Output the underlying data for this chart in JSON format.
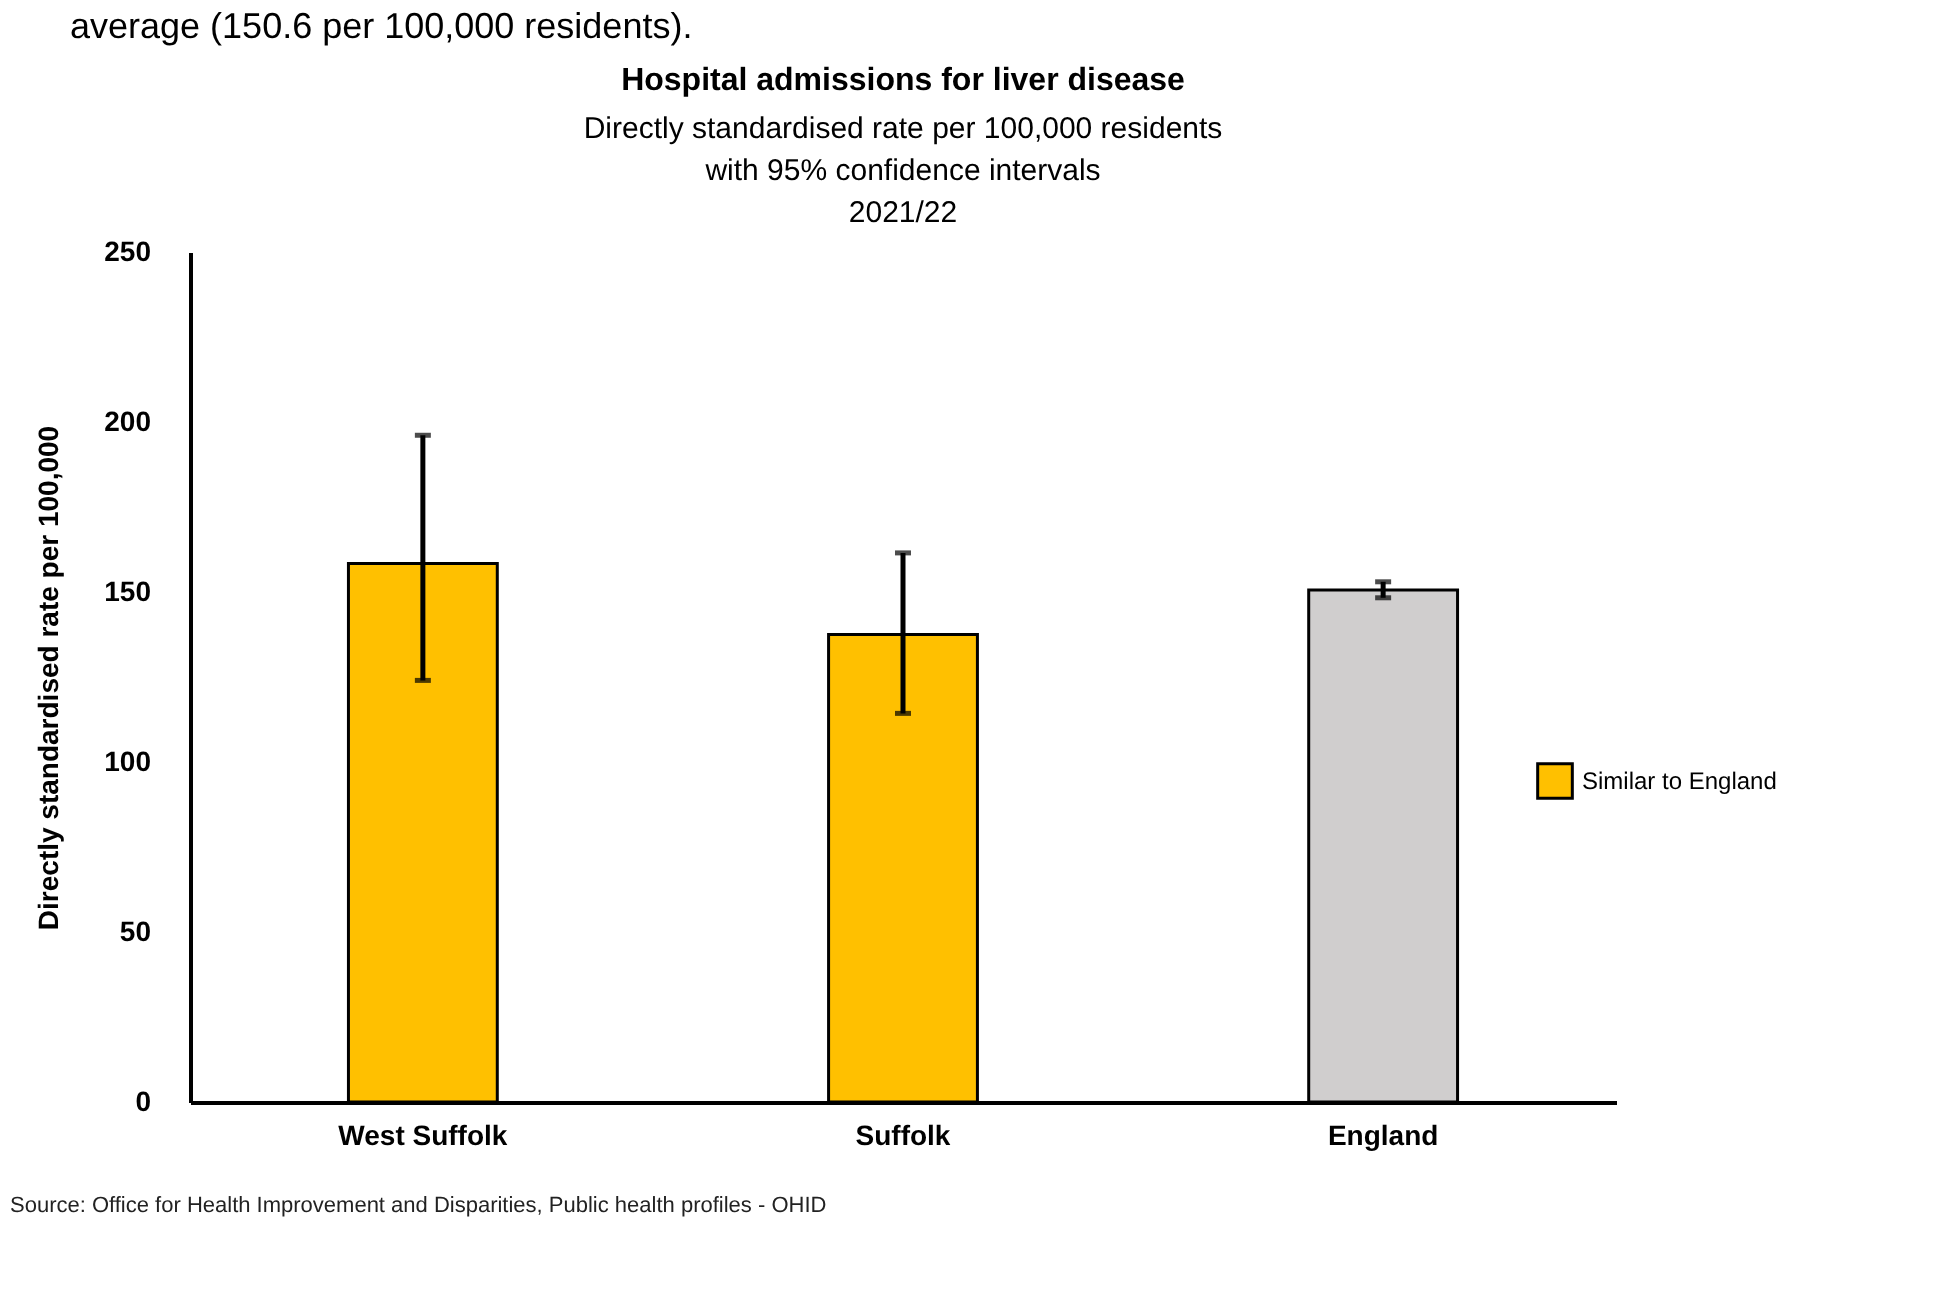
{
  "chart_data": {
    "type": "bar",
    "title": "Hospital admissions for liver disease",
    "subtitle": "Directly standardised rate per 100,000 residents\nwith 95% confidence intervals\n2021/22",
    "ylabel": "Directly standardised rate per 100,000",
    "categories": [
      "West Suffolk",
      "Suffolk",
      "England"
    ],
    "series": [
      {
        "name": "Similar to England",
        "color": "#ffc000",
        "values": [
          158.4,
          137.5,
          null
        ],
        "errors": [
          [
            124.0,
            196.1
          ],
          [
            114.3,
            161.5
          ],
          null
        ]
      },
      {
        "color": "#d0cece",
        "values": [
          null,
          null,
          150.6
        ],
        "errors": [
          null,
          null,
          [
            148.3,
            153.0
          ]
        ]
      }
    ],
    "ylim": [
      0,
      250
    ],
    "yticks": [
      0,
      50,
      100,
      150,
      200,
      250
    ],
    "grid": false,
    "legend": "right",
    "annotations": [
      "average (150.6 per 100,000 residents).",
      "Source: Office for Health Improvement and Disparities, Public health profiles - OHID"
    ]
  }
}
